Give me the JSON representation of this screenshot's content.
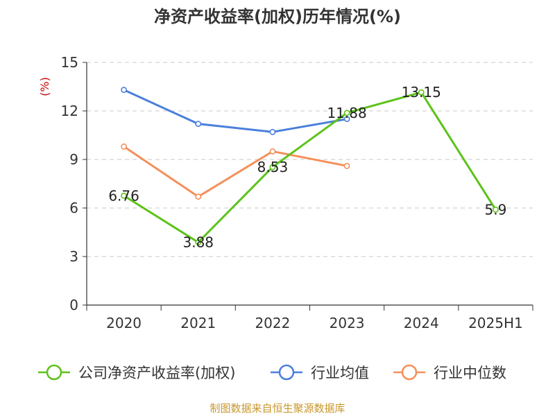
{
  "chart_data": {
    "type": "line",
    "title": "净资产收益率(加权)历年情况(%)",
    "ylabel": "(%)",
    "ylim": [
      0,
      15
    ],
    "yticks": [
      0,
      3,
      6,
      9,
      12,
      15
    ],
    "grid": true,
    "legend_position": "bottom",
    "categories": [
      "2020",
      "2021",
      "2022",
      "2023",
      "2024",
      "2025H1"
    ],
    "series": [
      {
        "name": "公司净资产收益率(加权)",
        "color": "#5cc219",
        "values": [
          6.76,
          3.88,
          8.53,
          11.88,
          13.15,
          5.9
        ],
        "labels": [
          "6.76",
          "3.88",
          "8.53",
          "11.88",
          "13.15",
          "5.9"
        ]
      },
      {
        "name": "行业均值",
        "color": "#4a7fdc",
        "values": [
          13.3,
          11.2,
          10.7,
          11.5,
          null,
          null
        ]
      },
      {
        "name": "行业中位数",
        "color": "#f58f5a",
        "values": [
          9.8,
          6.7,
          9.5,
          8.6,
          null,
          null
        ]
      }
    ]
  },
  "colors": {
    "ylabel": "#cc0000",
    "source": "#c8962a",
    "grid": "#c8c8c8"
  },
  "source": "制图数据来自恒生聚源数据库"
}
